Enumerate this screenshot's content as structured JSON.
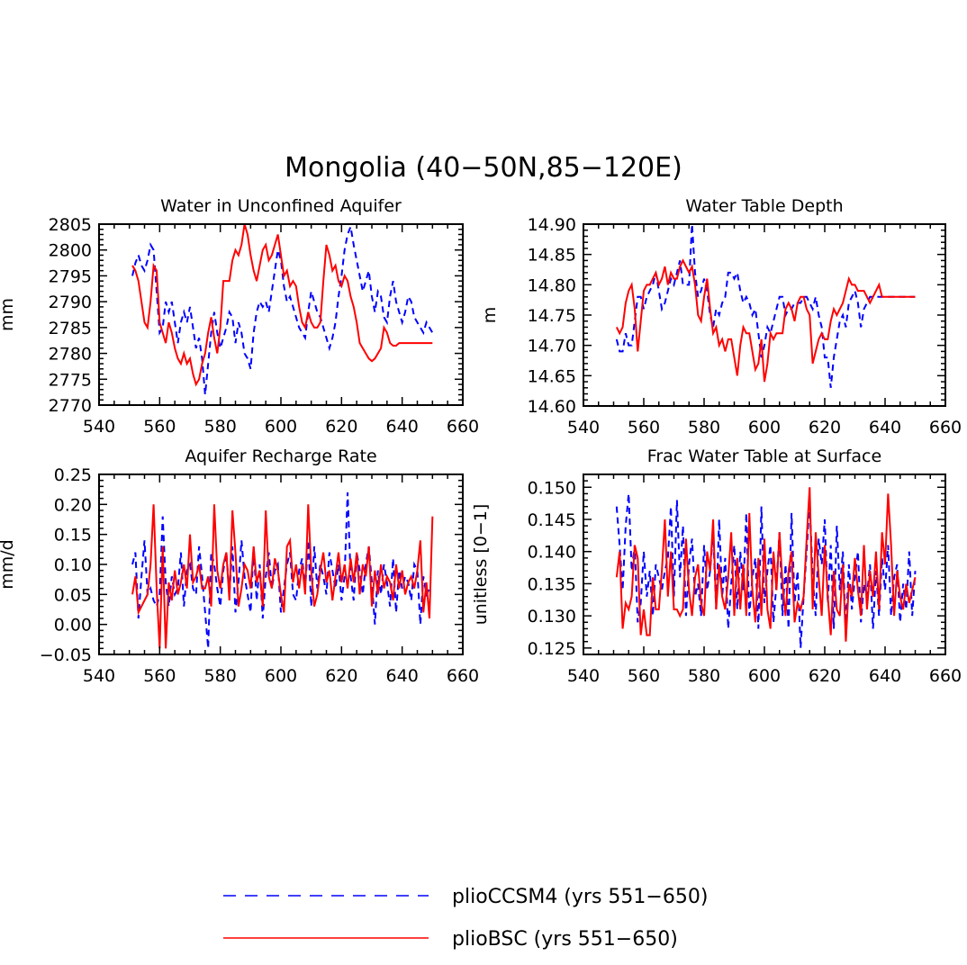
{
  "figure_title": "Mongolia (40−50N,85−120E)",
  "colors": {
    "pliocCSM4": "#0000ff",
    "plioBSC": "#ff0000",
    "axis": "#000000"
  },
  "legend": [
    {
      "label": "plioCCSM4 (yrs 551−650)",
      "color": "#0000ff",
      "style": "dashed"
    },
    {
      "label": "plioBSC (yrs 551−650)",
      "color": "#ff0000",
      "style": "solid"
    }
  ],
  "chart_data": [
    {
      "type": "line",
      "title": "Water in Unconfined Aquifer",
      "xlabel": "",
      "ylabel": "mm",
      "xlim": [
        540,
        660
      ],
      "ylim": [
        2770,
        2805
      ],
      "xticks": [
        540,
        560,
        580,
        600,
        620,
        640,
        660
      ],
      "xtick_labels": [
        "540",
        "560",
        "580",
        "600",
        "620",
        "640",
        "660"
      ],
      "yticks": [
        2770,
        2775,
        2780,
        2785,
        2790,
        2795,
        2800,
        2805
      ],
      "ytick_labels": [
        "2770",
        "2775",
        "2780",
        "2785",
        "2790",
        "2795",
        "2800",
        "2805"
      ],
      "x_start": 551,
      "series": [
        {
          "name": "plioCCSM4 (yrs 551−650)",
          "color": "#0000ff",
          "style": "dashed",
          "values": [
            2795,
            2797.5,
            2799,
            2797,
            2796,
            2798,
            2801,
            2800,
            2792,
            2784,
            2785,
            2790,
            2788,
            2790,
            2786,
            2782,
            2786,
            2788,
            2786,
            2789,
            2785,
            2781,
            2783,
            2779,
            2772,
            2778,
            2784,
            2788,
            2784,
            2781,
            2783,
            2785,
            2788,
            2787,
            2782,
            2786,
            2784,
            2780,
            2779,
            2777,
            2784,
            2788,
            2790,
            2789,
            2790,
            2788,
            2792,
            2796,
            2800,
            2798,
            2793,
            2790,
            2791,
            2789,
            2787,
            2785,
            2784,
            2783,
            2788,
            2792,
            2790,
            2788,
            2787,
            2785,
            2783,
            2781,
            2783,
            2786,
            2791,
            2795,
            2800,
            2803,
            2804.5,
            2801,
            2798,
            2795,
            2792,
            2794,
            2796,
            2791,
            2788,
            2792,
            2791,
            2787,
            2786,
            2791,
            2794,
            2790,
            2788,
            2786,
            2788,
            2791,
            2790,
            2787,
            2786,
            2785,
            2784,
            2786,
            2785,
            2784
          ]
        },
        {
          "name": "plioBSC (yrs 551−650)",
          "color": "#ff0000",
          "style": "solid",
          "values": [
            2797,
            2796,
            2794,
            2790,
            2786,
            2785,
            2790,
            2797,
            2796,
            2786,
            2784,
            2782,
            2786,
            2784,
            2781,
            2779,
            2778,
            2780,
            2778,
            2779,
            2776,
            2774,
            2775,
            2778,
            2780,
            2784,
            2787,
            2783,
            2780,
            2785,
            2794,
            2794,
            2794,
            2798,
            2800,
            2799,
            2801,
            2805,
            2803,
            2799,
            2796,
            2794,
            2797,
            2800,
            2801,
            2798,
            2799,
            2801,
            2803,
            2799,
            2795,
            2796,
            2793,
            2794,
            2793,
            2789,
            2786,
            2785,
            2788,
            2786,
            2785,
            2785,
            2786,
            2794,
            2801,
            2799,
            2796,
            2797,
            2794,
            2793,
            2795,
            2794,
            2791,
            2789,
            2786,
            2782,
            2781,
            2780,
            2779,
            2778.5,
            2779,
            2780,
            2781,
            2785,
            2784,
            2782,
            2781.5,
            2781.5,
            2782,
            2782,
            2782,
            2782,
            2782,
            2782,
            2782,
            2782,
            2782,
            2782,
            2782,
            2782
          ]
        }
      ]
    },
    {
      "type": "line",
      "title": "Water Table Depth",
      "xlabel": "",
      "ylabel": "m",
      "xlim": [
        540,
        660
      ],
      "ylim": [
        14.6,
        14.9
      ],
      "xticks": [
        540,
        560,
        580,
        600,
        620,
        640,
        660
      ],
      "xtick_labels": [
        "540",
        "560",
        "580",
        "600",
        "620",
        "640",
        "660"
      ],
      "yticks": [
        14.6,
        14.65,
        14.7,
        14.75,
        14.8,
        14.85,
        14.9
      ],
      "ytick_labels": [
        "14.60",
        "14.65",
        "14.70",
        "14.75",
        "14.80",
        "14.85",
        "14.90"
      ],
      "x_start": 551,
      "series": [
        {
          "name": "plioCCSM4 (yrs 551−650)",
          "color": "#0000ff",
          "style": "dashed",
          "values": [
            14.71,
            14.69,
            14.69,
            14.72,
            14.7,
            14.7,
            14.74,
            14.78,
            14.78,
            14.76,
            14.78,
            14.79,
            14.8,
            14.82,
            14.79,
            14.76,
            14.77,
            14.79,
            14.81,
            14.8,
            14.82,
            14.84,
            14.8,
            14.8,
            14.8,
            14.9,
            14.82,
            14.78,
            14.79,
            14.81,
            14.79,
            14.75,
            14.73,
            14.76,
            14.75,
            14.77,
            14.78,
            14.82,
            14.82,
            14.81,
            14.82,
            14.79,
            14.77,
            14.78,
            14.77,
            14.75,
            14.76,
            14.72,
            14.68,
            14.7,
            14.73,
            14.72,
            14.74,
            14.76,
            14.78,
            14.78,
            14.75,
            14.76,
            14.76,
            14.77,
            14.77,
            14.77,
            14.78,
            14.78,
            14.77,
            14.76,
            14.78,
            14.75,
            14.73,
            14.68,
            14.68,
            14.63,
            14.68,
            14.71,
            14.74,
            14.75,
            14.73,
            14.77,
            14.78,
            14.79,
            14.77,
            14.73,
            14.76,
            14.77,
            14.78,
            14.78,
            14.78,
            14.78,
            14.78,
            14.78,
            14.78,
            14.78,
            14.78,
            14.78,
            14.78,
            14.78,
            14.78,
            14.78,
            14.78,
            14.78
          ]
        },
        {
          "name": "plioBSC (yrs 551−650)",
          "color": "#ff0000",
          "style": "solid",
          "values": [
            14.73,
            14.72,
            14.73,
            14.77,
            14.79,
            14.8,
            14.76,
            14.69,
            14.74,
            14.79,
            14.8,
            14.8,
            14.81,
            14.82,
            14.8,
            14.81,
            14.83,
            14.8,
            14.82,
            14.81,
            14.81,
            14.83,
            14.84,
            14.83,
            14.82,
            14.83,
            14.8,
            14.75,
            14.74,
            14.78,
            14.81,
            14.76,
            14.72,
            14.73,
            14.7,
            14.71,
            14.69,
            14.71,
            14.71,
            14.68,
            14.65,
            14.7,
            14.73,
            14.72,
            14.72,
            14.69,
            14.66,
            14.67,
            14.71,
            14.64,
            14.67,
            14.72,
            14.71,
            14.72,
            14.72,
            14.72,
            14.76,
            14.77,
            14.76,
            14.74,
            14.77,
            14.78,
            14.78,
            14.76,
            14.75,
            14.67,
            14.69,
            14.71,
            14.72,
            14.71,
            14.71,
            14.74,
            14.76,
            14.75,
            14.76,
            14.77,
            14.79,
            14.81,
            14.8,
            14.8,
            14.79,
            14.79,
            14.79,
            14.78,
            14.77,
            14.78,
            14.79,
            14.8,
            14.78,
            14.78,
            14.78,
            14.78,
            14.78,
            14.78,
            14.78,
            14.78,
            14.78,
            14.78,
            14.78,
            14.78
          ]
        }
      ]
    },
    {
      "type": "line",
      "title": "Aquifer Recharge Rate",
      "xlabel": "",
      "ylabel": "mm/d",
      "xlim": [
        540,
        660
      ],
      "ylim": [
        -0.05,
        0.25
      ],
      "xticks": [
        540,
        560,
        580,
        600,
        620,
        640,
        660
      ],
      "xtick_labels": [
        "540",
        "560",
        "580",
        "600",
        "620",
        "640",
        "660"
      ],
      "yticks": [
        -0.05,
        0.0,
        0.05,
        0.1,
        0.15,
        0.2,
        0.25
      ],
      "ytick_labels": [
        "−0.05",
        "0.00",
        "0.05",
        "0.10",
        "0.15",
        "0.20",
        "0.25"
      ],
      "x_start": 551,
      "series": [
        {
          "name": "plioCCSM4 (yrs 551−650)",
          "color": "#0000ff",
          "style": "dashed",
          "values": [
            0.1,
            0.12,
            0.01,
            0.08,
            0.14,
            0.05,
            0.06,
            0.04,
            0.03,
            0.05,
            0.18,
            0.07,
            0.03,
            0.08,
            0.05,
            0.06,
            0.12,
            0.03,
            0.09,
            0.1,
            0.06,
            0.05,
            0.13,
            0.08,
            0.02,
            -0.04,
            0.12,
            0.1,
            0.06,
            0.03,
            0.09,
            0.12,
            0.05,
            0.13,
            0.02,
            0.07,
            0.14,
            0.08,
            0.05,
            0.02,
            0.13,
            0.04,
            0.1,
            0.01,
            0.08,
            0.12,
            0.06,
            0.09,
            0.1,
            0.02,
            0.06,
            0.1,
            0.12,
            0.05,
            0.04,
            0.09,
            0.11,
            0.06,
            0.14,
            0.03,
            0.13,
            0.06,
            0.1,
            0.08,
            0.05,
            0.12,
            0.09,
            0.06,
            0.1,
            0.04,
            0.08,
            0.22,
            0.08,
            0.04,
            0.12,
            0.09,
            0.05,
            0.1,
            0.13,
            0.07,
            0.0,
            0.09,
            0.05,
            0.1,
            0.07,
            0.03,
            0.11,
            0.02,
            0.09,
            0.06,
            0.08,
            0.07,
            0.04,
            0.1,
            0.09,
            0.0,
            0.08,
            0.05,
            0.06,
            0.06
          ]
        },
        {
          "name": "plioBSC (yrs 551−650)",
          "color": "#ff0000",
          "style": "solid",
          "values": [
            0.05,
            0.08,
            0.02,
            0.03,
            0.04,
            0.05,
            0.1,
            0.2,
            0.06,
            -0.04,
            0.13,
            -0.04,
            0.07,
            0.04,
            0.09,
            0.05,
            0.07,
            0.1,
            0.06,
            0.15,
            0.07,
            0.08,
            0.1,
            0.06,
            0.06,
            0.08,
            0.03,
            0.2,
            0.09,
            0.06,
            0.1,
            0.12,
            0.04,
            0.19,
            0.12,
            0.03,
            0.06,
            0.1,
            0.09,
            0.06,
            0.13,
            0.07,
            0.09,
            0.03,
            0.19,
            0.08,
            0.06,
            0.11,
            0.09,
            0.05,
            0.02,
            0.13,
            0.14,
            0.07,
            0.1,
            0.06,
            0.1,
            0.05,
            0.2,
            0.09,
            0.03,
            0.05,
            0.09,
            0.12,
            0.07,
            0.09,
            0.04,
            0.08,
            0.12,
            0.07,
            0.1,
            0.06,
            0.11,
            0.07,
            0.12,
            0.05,
            0.1,
            0.08,
            0.13,
            0.03,
            0.09,
            0.05,
            0.1,
            0.06,
            0.08,
            0.07,
            0.04,
            0.1,
            0.06,
            0.09,
            0.05,
            0.07,
            0.08,
            0.06,
            0.09,
            0.14,
            0.02,
            0.07,
            0.01,
            0.18
          ]
        }
      ]
    },
    {
      "type": "line",
      "title": "Frac Water Table at Surface",
      "xlabel": "",
      "ylabel": "unitless [0−1]",
      "xlim": [
        540,
        660
      ],
      "ylim": [
        0.124,
        0.152
      ],
      "xticks": [
        540,
        560,
        580,
        600,
        620,
        640,
        660
      ],
      "xtick_labels": [
        "540",
        "560",
        "580",
        "600",
        "620",
        "640",
        "660"
      ],
      "yticks": [
        0.125,
        0.13,
        0.135,
        0.14,
        0.145,
        0.15
      ],
      "ytick_labels": [
        "0.125",
        "0.130",
        "0.135",
        "0.140",
        "0.145",
        "0.150"
      ],
      "x_start": 551,
      "series": [
        {
          "name": "plioCCSM4 (yrs 551−650)",
          "color": "#0000ff",
          "style": "dashed",
          "values": [
            0.147,
            0.141,
            0.134,
            0.144,
            0.149,
            0.137,
            0.141,
            0.129,
            0.132,
            0.14,
            0.133,
            0.137,
            0.13,
            0.138,
            0.136,
            0.134,
            0.137,
            0.139,
            0.147,
            0.133,
            0.148,
            0.136,
            0.144,
            0.13,
            0.138,
            0.142,
            0.133,
            0.135,
            0.13,
            0.141,
            0.134,
            0.137,
            0.143,
            0.131,
            0.145,
            0.133,
            0.139,
            0.128,
            0.135,
            0.141,
            0.131,
            0.14,
            0.134,
            0.146,
            0.13,
            0.136,
            0.139,
            0.128,
            0.147,
            0.132,
            0.137,
            0.141,
            0.129,
            0.135,
            0.143,
            0.13,
            0.138,
            0.128,
            0.146,
            0.132,
            0.137,
            0.125,
            0.133,
            0.14,
            0.148,
            0.136,
            0.13,
            0.142,
            0.138,
            0.145,
            0.132,
            0.141,
            0.128,
            0.144,
            0.134,
            0.14,
            0.128,
            0.138,
            0.131,
            0.136,
            0.14,
            0.129,
            0.135,
            0.133,
            0.138,
            0.128,
            0.137,
            0.13,
            0.139,
            0.134,
            0.141,
            0.13,
            0.136,
            0.138,
            0.129,
            0.135,
            0.131,
            0.14,
            0.13,
            0.137
          ]
        },
        {
          "name": "plioBSC (yrs 551−650)",
          "color": "#ff0000",
          "style": "solid",
          "values": [
            0.136,
            0.14,
            0.128,
            0.132,
            0.131,
            0.133,
            0.141,
            0.139,
            0.127,
            0.131,
            0.127,
            0.127,
            0.136,
            0.131,
            0.131,
            0.137,
            0.145,
            0.133,
            0.14,
            0.131,
            0.131,
            0.13,
            0.131,
            0.142,
            0.134,
            0.13,
            0.136,
            0.138,
            0.132,
            0.13,
            0.14,
            0.137,
            0.145,
            0.131,
            0.138,
            0.133,
            0.131,
            0.136,
            0.143,
            0.13,
            0.139,
            0.131,
            0.138,
            0.13,
            0.146,
            0.134,
            0.129,
            0.139,
            0.13,
            0.142,
            0.131,
            0.128,
            0.14,
            0.134,
            0.143,
            0.135,
            0.13,
            0.137,
            0.14,
            0.129,
            0.132,
            0.131,
            0.133,
            0.142,
            0.15,
            0.131,
            0.143,
            0.136,
            0.13,
            0.141,
            0.133,
            0.127,
            0.137,
            0.131,
            0.13,
            0.138,
            0.126,
            0.135,
            0.133,
            0.139,
            0.134,
            0.13,
            0.141,
            0.131,
            0.137,
            0.133,
            0.14,
            0.131,
            0.143,
            0.138,
            0.149,
            0.141,
            0.13,
            0.137,
            0.133,
            0.131,
            0.135,
            0.132,
            0.134,
            0.136
          ]
        }
      ]
    }
  ]
}
